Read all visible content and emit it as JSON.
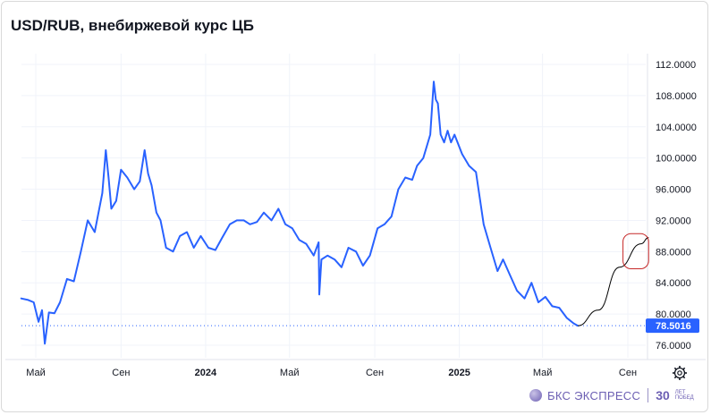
{
  "title": "USD/RUB, внебиржевой курс ЦБ",
  "colors": {
    "line": "#2962ff",
    "grid": "#f0f3fa",
    "last_bg": "#2962ff",
    "highlight": "#c62828",
    "forecast": "#000000",
    "dotted": "#2962ff"
  },
  "brand": {
    "name": "БКС ЭКСПРЕСС",
    "age": "30",
    "age_sub": "ЛЕТ ПОБЕД",
    "logo_icon": "bks-logo-icon"
  },
  "settings_icon": "gear-icon",
  "chart_data": {
    "type": "line",
    "title": "USD/RUB, внебиржевой курс ЦБ",
    "y_ticks": [
      "112.0000",
      "108.0000",
      "104.0000",
      "100.0000",
      "96.0000",
      "92.0000",
      "88.0000",
      "84.0000",
      "80.0000",
      "76.0000"
    ],
    "y_tick_values": [
      112,
      108,
      104,
      100,
      96,
      92,
      88,
      84,
      80,
      76
    ],
    "x_ticks": [
      {
        "label": "Май",
        "date": "2023-05-01",
        "bold": false
      },
      {
        "label": "Сен",
        "date": "2023-09-01",
        "bold": false
      },
      {
        "label": "2024",
        "date": "2024-01-01",
        "bold": true
      },
      {
        "label": "Май",
        "date": "2024-05-01",
        "bold": false
      },
      {
        "label": "Сен",
        "date": "2024-09-01",
        "bold": false
      },
      {
        "label": "2025",
        "date": "2025-01-01",
        "bold": true
      },
      {
        "label": "Май",
        "date": "2025-05-01",
        "bold": false
      },
      {
        "label": "Сен",
        "date": "2025-09-01",
        "bold": false
      }
    ],
    "last_value": "78.5016",
    "series": [
      {
        "x": [
          "2023-04-10",
          "2023-04-20",
          "2023-04-28",
          "2023-05-05",
          "2023-05-10",
          "2023-05-14",
          "2023-05-20",
          "2023-05-28",
          "2023-06-05",
          "2023-06-15",
          "2023-06-25",
          "2023-07-05",
          "2023-07-15",
          "2023-07-25",
          "2023-08-05",
          "2023-08-10",
          "2023-08-14",
          "2023-08-18",
          "2023-08-25",
          "2023-09-01",
          "2023-09-10",
          "2023-09-20",
          "2023-09-28",
          "2023-10-05",
          "2023-10-10",
          "2023-10-15",
          "2023-10-22",
          "2023-10-28",
          "2023-11-05",
          "2023-11-15",
          "2023-11-25",
          "2023-12-05",
          "2023-12-15",
          "2023-12-25",
          "2024-01-05",
          "2024-01-15",
          "2024-01-25",
          "2024-02-05",
          "2024-02-15",
          "2024-02-25",
          "2024-03-05",
          "2024-03-15",
          "2024-03-25",
          "2024-04-05",
          "2024-04-15",
          "2024-04-25",
          "2024-05-05",
          "2024-05-15",
          "2024-05-25",
          "2024-06-05",
          "2024-06-12",
          "2024-06-13",
          "2024-06-16",
          "2024-06-25",
          "2024-07-05",
          "2024-07-15",
          "2024-07-25",
          "2024-08-05",
          "2024-08-15",
          "2024-08-25",
          "2024-09-05",
          "2024-09-15",
          "2024-09-25",
          "2024-10-05",
          "2024-10-15",
          "2024-10-25",
          "2024-11-01",
          "2024-11-10",
          "2024-11-20",
          "2024-11-25",
          "2024-11-28",
          "2024-12-01",
          "2024-12-05",
          "2024-12-10",
          "2024-12-15",
          "2024-12-20",
          "2024-12-25",
          "2025-01-05",
          "2025-01-15",
          "2025-01-25",
          "2025-02-05",
          "2025-02-15",
          "2025-02-25",
          "2025-03-05",
          "2025-03-15",
          "2025-03-25",
          "2025-04-05",
          "2025-04-15",
          "2025-04-25",
          "2025-05-05",
          "2025-05-15",
          "2025-05-25",
          "2025-06-05",
          "2025-06-15",
          "2025-06-21"
        ],
        "y": [
          82.0,
          81.8,
          81.5,
          79.0,
          80.5,
          76.2,
          80.2,
          80.1,
          81.5,
          84.5,
          84.2,
          88.0,
          92.0,
          90.5,
          95.5,
          101.0,
          97.5,
          93.5,
          94.5,
          98.5,
          97.5,
          96.0,
          97.0,
          101.0,
          98.0,
          96.5,
          93.0,
          92.0,
          88.5,
          88.0,
          90.0,
          90.5,
          88.5,
          90.0,
          88.5,
          88.2,
          89.8,
          91.5,
          92.0,
          92.0,
          91.5,
          91.8,
          93.0,
          92.0,
          93.5,
          91.5,
          91.0,
          89.5,
          89.0,
          87.5,
          89.2,
          82.5,
          87.0,
          87.5,
          87.0,
          86.0,
          88.5,
          88.0,
          86.2,
          87.5,
          91.0,
          91.5,
          92.5,
          96.0,
          97.5,
          97.2,
          99.0,
          100.0,
          103.0,
          109.8,
          107.5,
          107.0,
          103.0,
          102.0,
          103.5,
          102.0,
          103.0,
          100.5,
          99.0,
          98.2,
          91.5,
          88.5,
          85.5,
          87.0,
          85.0,
          83.0,
          82.0,
          84.0,
          81.5,
          82.2,
          81.0,
          80.8,
          79.5,
          78.8,
          78.5016
        ]
      }
    ],
    "forecast": {
      "x": [
        "2025-06-21",
        "2025-07-20",
        "2025-08-20",
        "2025-09-20",
        "2025-10-01"
      ],
      "y": [
        78.5016,
        80.5,
        86.0,
        89.0,
        89.8
      ],
      "target_zone": {
        "x0": "2025-08-25",
        "x1": "2025-10-01",
        "y0": 85.8,
        "y1": 90.3
      }
    }
  }
}
